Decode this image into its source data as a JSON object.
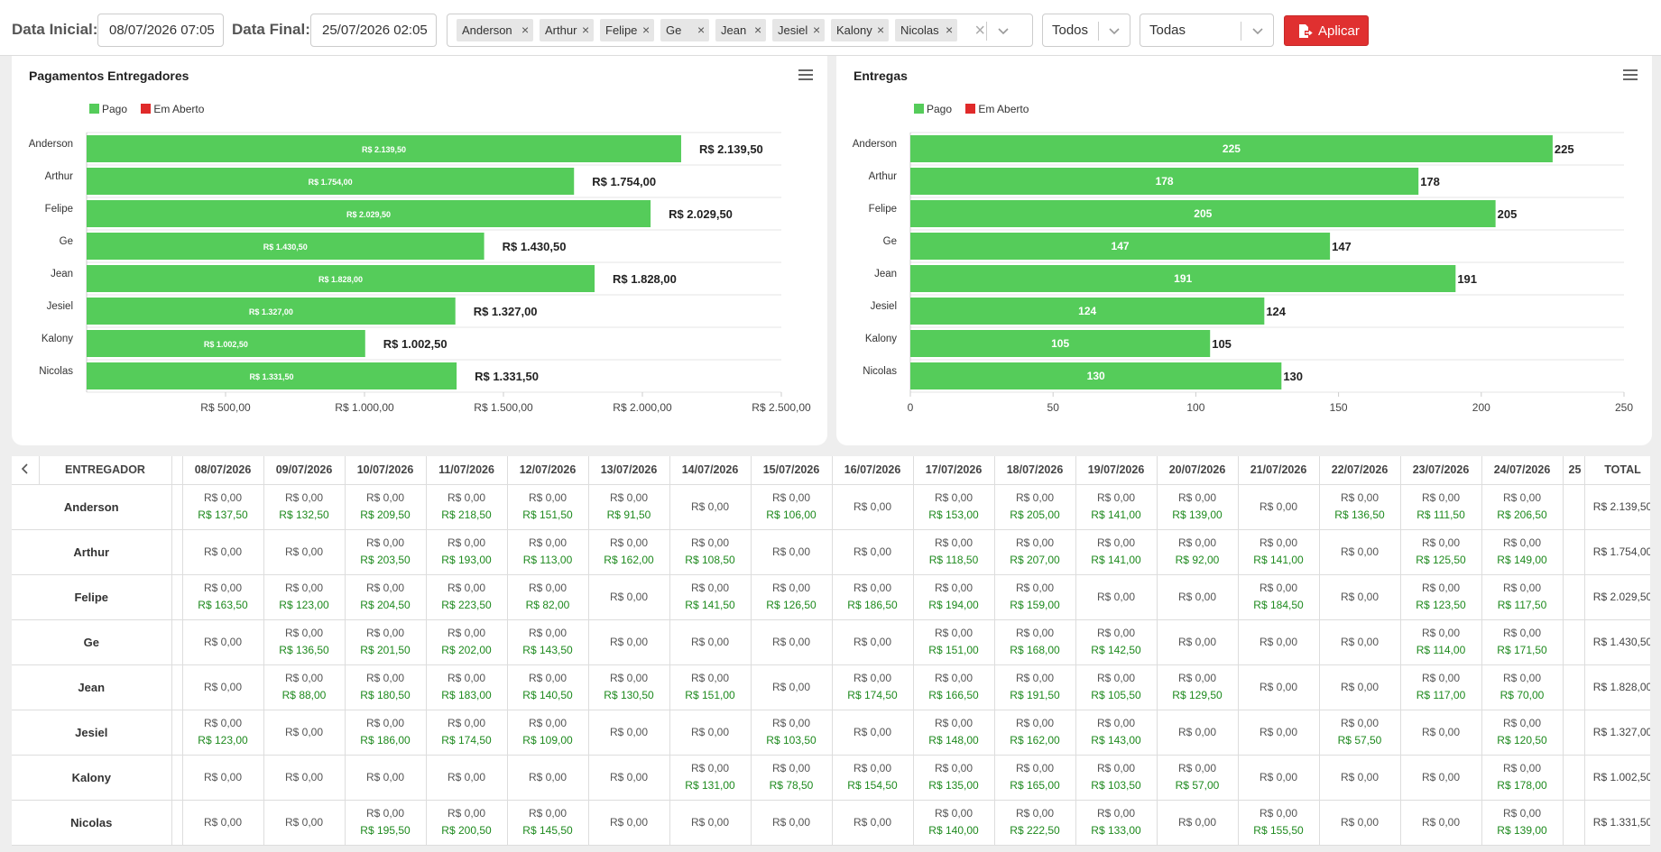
{
  "filters": {
    "start_label": "Data Inicial:",
    "start_value": "08/07/2026 07:05",
    "end_label": "Data Final:",
    "end_value": "25/07/2026 02:05",
    "selected_couriers": [
      "Anderson",
      "Arthur",
      "Felipe",
      "Ge",
      "Jean",
      "Jesiel",
      "Kalony",
      "Nicolas"
    ],
    "status_value": "Todos",
    "second_value": "Todas",
    "apply_label": "Aplicar"
  },
  "colors": {
    "pago": "#55cc5a",
    "em_aberto": "#e02a2a",
    "accent": "#e03030"
  },
  "charts": {
    "payments": {
      "title": "Pagamentos Entregadores",
      "menu_icon": "hamburger-menu-icon",
      "legend": [
        "Pago",
        "Em Aberto"
      ]
    },
    "deliveries": {
      "title": "Entregas",
      "menu_icon": "hamburger-menu-icon",
      "legend": [
        "Pago",
        "Em Aberto"
      ]
    }
  },
  "chart_data": [
    {
      "type": "bar",
      "orientation": "horizontal",
      "stacked": true,
      "title": "Pagamentos Entregadores",
      "categories": [
        "Anderson",
        "Arthur",
        "Felipe",
        "Ge",
        "Jean",
        "Jesiel",
        "Kalony",
        "Nicolas"
      ],
      "series": [
        {
          "name": "Pago",
          "values": [
            2139.5,
            1754.0,
            2029.5,
            1430.5,
            1828.0,
            1327.0,
            1002.5,
            1331.5
          ],
          "labels": [
            "R$ 2.139,50",
            "R$ 1.754,00",
            "R$ 2.029,50",
            "R$ 1.430,50",
            "R$ 1.828,00",
            "R$ 1.327,00",
            "R$ 1.002,50",
            "R$ 1.331,50"
          ]
        },
        {
          "name": "Em Aberto",
          "values": [
            0,
            0,
            0,
            0,
            0,
            0,
            0,
            0
          ]
        }
      ],
      "total_labels": [
        "R$ 2.139,50",
        "R$ 1.754,00",
        "R$ 2.029,50",
        "R$ 1.430,50",
        "R$ 1.828,00",
        "R$ 1.327,00",
        "R$ 1.002,50",
        "R$ 1.331,50"
      ],
      "xlim": [
        0,
        2500
      ],
      "xticks": [
        500,
        1000,
        1500,
        2000,
        2500
      ],
      "xtick_labels": [
        "R$ 500,00",
        "R$ 1.000,00",
        "R$ 1.500,00",
        "R$ 2.000,00",
        "R$ 2.500,00"
      ],
      "legend_position": "top-left",
      "grid": true
    },
    {
      "type": "bar",
      "orientation": "horizontal",
      "stacked": true,
      "title": "Entregas",
      "categories": [
        "Anderson",
        "Arthur",
        "Felipe",
        "Ge",
        "Jean",
        "Jesiel",
        "Kalony",
        "Nicolas"
      ],
      "series": [
        {
          "name": "Pago",
          "values": [
            225,
            178,
            205,
            147,
            191,
            124,
            105,
            130
          ]
        },
        {
          "name": "Em Aberto",
          "values": [
            0,
            0,
            0,
            0,
            0,
            0,
            0,
            0
          ]
        }
      ],
      "total_labels": [
        "225",
        "178",
        "205",
        "147",
        "191",
        "124",
        "105",
        "130"
      ],
      "xlim": [
        0,
        250
      ],
      "xticks": [
        0,
        50,
        100,
        150,
        200,
        250
      ],
      "xtick_labels": [
        "0",
        "50",
        "100",
        "150",
        "200",
        "250"
      ],
      "legend_position": "top-left",
      "grid": true
    }
  ],
  "table": {
    "prev_icon": "chevron-left-icon",
    "name_header": "ENTREGADOR",
    "date_headers": [
      "08/07/2026",
      "09/07/2026",
      "10/07/2026",
      "11/07/2026",
      "12/07/2026",
      "13/07/2026",
      "14/07/2026",
      "15/07/2026",
      "16/07/2026",
      "17/07/2026",
      "18/07/2026",
      "19/07/2026",
      "20/07/2026",
      "21/07/2026",
      "22/07/2026",
      "23/07/2026",
      "24/07/2026",
      "25"
    ],
    "total_header": "TOTAL",
    "rows": [
      {
        "name": "Anderson",
        "cells": [
          [
            "R$ 0,00",
            "R$ 137,50"
          ],
          [
            "R$ 0,00",
            "R$ 132,50"
          ],
          [
            "R$ 0,00",
            "R$ 209,50"
          ],
          [
            "R$ 0,00",
            "R$ 218,50"
          ],
          [
            "R$ 0,00",
            "R$ 151,50"
          ],
          [
            "R$ 0,00",
            "R$ 91,50"
          ],
          [
            "R$ 0,00"
          ],
          [
            "R$ 0,00",
            "R$ 106,00"
          ],
          [
            "R$ 0,00"
          ],
          [
            "R$ 0,00",
            "R$ 153,00"
          ],
          [
            "R$ 0,00",
            "R$ 205,00"
          ],
          [
            "R$ 0,00",
            "R$ 141,00"
          ],
          [
            "R$ 0,00",
            "R$ 139,00"
          ],
          [
            "R$ 0,00"
          ],
          [
            "R$ 0,00",
            "R$ 136,50"
          ],
          [
            "R$ 0,00",
            "R$ 111,50"
          ],
          [
            "R$ 0,00",
            "R$ 206,50"
          ],
          []
        ],
        "total": "R$ 2.139,50"
      },
      {
        "name": "Arthur",
        "cells": [
          [
            "R$ 0,00"
          ],
          [
            "R$ 0,00"
          ],
          [
            "R$ 0,00",
            "R$ 203,50"
          ],
          [
            "R$ 0,00",
            "R$ 193,00"
          ],
          [
            "R$ 0,00",
            "R$ 113,00"
          ],
          [
            "R$ 0,00",
            "R$ 162,00"
          ],
          [
            "R$ 0,00",
            "R$ 108,50"
          ],
          [
            "R$ 0,00"
          ],
          [
            "R$ 0,00"
          ],
          [
            "R$ 0,00",
            "R$ 118,50"
          ],
          [
            "R$ 0,00",
            "R$ 207,00"
          ],
          [
            "R$ 0,00",
            "R$ 141,00"
          ],
          [
            "R$ 0,00",
            "R$ 92,00"
          ],
          [
            "R$ 0,00",
            "R$ 141,00"
          ],
          [
            "R$ 0,00"
          ],
          [
            "R$ 0,00",
            "R$ 125,50"
          ],
          [
            "R$ 0,00",
            "R$ 149,00"
          ],
          []
        ],
        "total": "R$ 1.754,00"
      },
      {
        "name": "Felipe",
        "cells": [
          [
            "R$ 0,00",
            "R$ 163,50"
          ],
          [
            "R$ 0,00",
            "R$ 123,00"
          ],
          [
            "R$ 0,00",
            "R$ 204,50"
          ],
          [
            "R$ 0,00",
            "R$ 223,50"
          ],
          [
            "R$ 0,00",
            "R$ 82,00"
          ],
          [
            "R$ 0,00"
          ],
          [
            "R$ 0,00",
            "R$ 141,50"
          ],
          [
            "R$ 0,00",
            "R$ 126,50"
          ],
          [
            "R$ 0,00",
            "R$ 186,50"
          ],
          [
            "R$ 0,00",
            "R$ 194,00"
          ],
          [
            "R$ 0,00",
            "R$ 159,00"
          ],
          [
            "R$ 0,00"
          ],
          [
            "R$ 0,00"
          ],
          [
            "R$ 0,00",
            "R$ 184,50"
          ],
          [
            "R$ 0,00"
          ],
          [
            "R$ 0,00",
            "R$ 123,50"
          ],
          [
            "R$ 0,00",
            "R$ 117,50"
          ],
          []
        ],
        "total": "R$ 2.029,50"
      },
      {
        "name": "Ge",
        "cells": [
          [
            "R$ 0,00"
          ],
          [
            "R$ 0,00",
            "R$ 136,50"
          ],
          [
            "R$ 0,00",
            "R$ 201,50"
          ],
          [
            "R$ 0,00",
            "R$ 202,00"
          ],
          [
            "R$ 0,00",
            "R$ 143,50"
          ],
          [
            "R$ 0,00"
          ],
          [
            "R$ 0,00"
          ],
          [
            "R$ 0,00"
          ],
          [
            "R$ 0,00"
          ],
          [
            "R$ 0,00",
            "R$ 151,00"
          ],
          [
            "R$ 0,00",
            "R$ 168,00"
          ],
          [
            "R$ 0,00",
            "R$ 142,50"
          ],
          [
            "R$ 0,00"
          ],
          [
            "R$ 0,00"
          ],
          [
            "R$ 0,00"
          ],
          [
            "R$ 0,00",
            "R$ 114,00"
          ],
          [
            "R$ 0,00",
            "R$ 171,50"
          ],
          []
        ],
        "total": "R$ 1.430,50"
      },
      {
        "name": "Jean",
        "cells": [
          [
            "R$ 0,00"
          ],
          [
            "R$ 0,00",
            "R$ 88,00"
          ],
          [
            "R$ 0,00",
            "R$ 180,50"
          ],
          [
            "R$ 0,00",
            "R$ 183,00"
          ],
          [
            "R$ 0,00",
            "R$ 140,50"
          ],
          [
            "R$ 0,00",
            "R$ 130,50"
          ],
          [
            "R$ 0,00",
            "R$ 151,00"
          ],
          [
            "R$ 0,00"
          ],
          [
            "R$ 0,00",
            "R$ 174,50"
          ],
          [
            "R$ 0,00",
            "R$ 166,50"
          ],
          [
            "R$ 0,00",
            "R$ 191,50"
          ],
          [
            "R$ 0,00",
            "R$ 105,50"
          ],
          [
            "R$ 0,00",
            "R$ 129,50"
          ],
          [
            "R$ 0,00"
          ],
          [
            "R$ 0,00"
          ],
          [
            "R$ 0,00",
            "R$ 117,00"
          ],
          [
            "R$ 0,00",
            "R$ 70,00"
          ],
          []
        ],
        "total": "R$ 1.828,00"
      },
      {
        "name": "Jesiel",
        "cells": [
          [
            "R$ 0,00",
            "R$ 123,00"
          ],
          [
            "R$ 0,00"
          ],
          [
            "R$ 0,00",
            "R$ 186,00"
          ],
          [
            "R$ 0,00",
            "R$ 174,50"
          ],
          [
            "R$ 0,00",
            "R$ 109,00"
          ],
          [
            "R$ 0,00"
          ],
          [
            "R$ 0,00"
          ],
          [
            "R$ 0,00",
            "R$ 103,50"
          ],
          [
            "R$ 0,00"
          ],
          [
            "R$ 0,00",
            "R$ 148,00"
          ],
          [
            "R$ 0,00",
            "R$ 162,00"
          ],
          [
            "R$ 0,00",
            "R$ 143,00"
          ],
          [
            "R$ 0,00"
          ],
          [
            "R$ 0,00"
          ],
          [
            "R$ 0,00",
            "R$ 57,50"
          ],
          [
            "R$ 0,00"
          ],
          [
            "R$ 0,00",
            "R$ 120,50"
          ],
          []
        ],
        "total": "R$ 1.327,00"
      },
      {
        "name": "Kalony",
        "cells": [
          [
            "R$ 0,00"
          ],
          [
            "R$ 0,00"
          ],
          [
            "R$ 0,00"
          ],
          [
            "R$ 0,00"
          ],
          [
            "R$ 0,00"
          ],
          [
            "R$ 0,00"
          ],
          [
            "R$ 0,00",
            "R$ 131,00"
          ],
          [
            "R$ 0,00",
            "R$ 78,50"
          ],
          [
            "R$ 0,00",
            "R$ 154,50"
          ],
          [
            "R$ 0,00",
            "R$ 135,00"
          ],
          [
            "R$ 0,00",
            "R$ 165,00"
          ],
          [
            "R$ 0,00",
            "R$ 103,50"
          ],
          [
            "R$ 0,00",
            "R$ 57,00"
          ],
          [
            "R$ 0,00"
          ],
          [
            "R$ 0,00"
          ],
          [
            "R$ 0,00"
          ],
          [
            "R$ 0,00",
            "R$ 178,00"
          ],
          []
        ],
        "total": "R$ 1.002,50"
      },
      {
        "name": "Nicolas",
        "cells": [
          [
            "R$ 0,00"
          ],
          [
            "R$ 0,00"
          ],
          [
            "R$ 0,00",
            "R$ 195,50"
          ],
          [
            "R$ 0,00",
            "R$ 200,50"
          ],
          [
            "R$ 0,00",
            "R$ 145,50"
          ],
          [
            "R$ 0,00"
          ],
          [
            "R$ 0,00"
          ],
          [
            "R$ 0,00"
          ],
          [
            "R$ 0,00"
          ],
          [
            "R$ 0,00",
            "R$ 140,00"
          ],
          [
            "R$ 0,00",
            "R$ 222,50"
          ],
          [
            "R$ 0,00",
            "R$ 133,00"
          ],
          [
            "R$ 0,00"
          ],
          [
            "R$ 0,00",
            "R$ 155,50"
          ],
          [
            "R$ 0,00"
          ],
          [
            "R$ 0,00"
          ],
          [
            "R$ 0,00",
            "R$ 139,00"
          ],
          []
        ],
        "total": "R$ 1.331,50"
      }
    ]
  }
}
